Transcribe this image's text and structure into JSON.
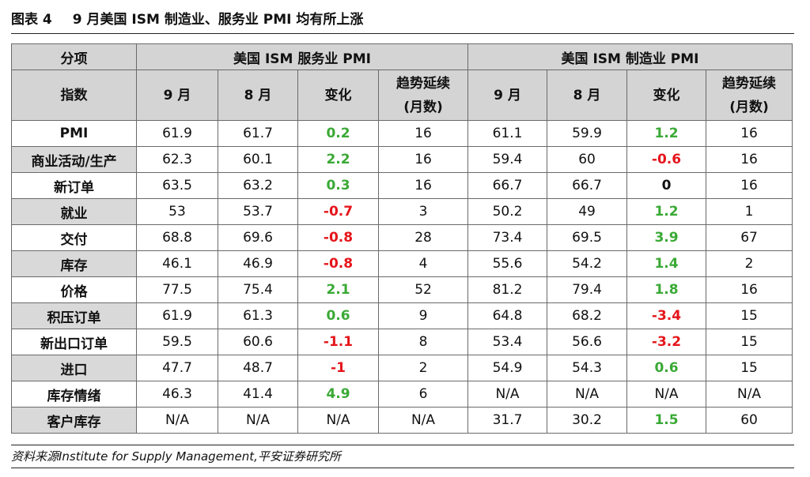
{
  "figure": {
    "label": "图表 4",
    "title": "9 月美国 ISM 制造业、服务业 PMI 均有所上涨"
  },
  "table": {
    "header_top": {
      "category": "分项",
      "services": "美国 ISM 服务业 PMI",
      "manufacturing": "美国 ISM 制造业 PMI"
    },
    "header_sub": {
      "index": "指数",
      "sep": "9 月",
      "aug": "8 月",
      "change": "变化",
      "trend_line1": "趋势延续",
      "trend_line2": "(月数)"
    },
    "rows": [
      {
        "name": "PMI",
        "s": [
          "61.9",
          "61.7",
          "0.2",
          "16"
        ],
        "m": [
          "61.1",
          "59.9",
          "1.2",
          "16"
        ],
        "sc": "pos",
        "mc": "pos"
      },
      {
        "name": "商业活动/生产",
        "s": [
          "62.3",
          "60.1",
          "2.2",
          "16"
        ],
        "m": [
          "59.4",
          "60",
          "-0.6",
          "16"
        ],
        "sc": "pos",
        "mc": "neg"
      },
      {
        "name": "新订单",
        "s": [
          "63.5",
          "63.2",
          "0.3",
          "16"
        ],
        "m": [
          "66.7",
          "66.7",
          "0",
          "16"
        ],
        "sc": "pos",
        "mc": "zero"
      },
      {
        "name": "就业",
        "s": [
          "53",
          "53.7",
          "-0.7",
          "3"
        ],
        "m": [
          "50.2",
          "49",
          "1.2",
          "1"
        ],
        "sc": "neg",
        "mc": "pos"
      },
      {
        "name": "交付",
        "s": [
          "68.8",
          "69.6",
          "-0.8",
          "28"
        ],
        "m": [
          "73.4",
          "69.5",
          "3.9",
          "67"
        ],
        "sc": "neg",
        "mc": "pos"
      },
      {
        "name": "库存",
        "s": [
          "46.1",
          "46.9",
          "-0.8",
          "4"
        ],
        "m": [
          "55.6",
          "54.2",
          "1.4",
          "2"
        ],
        "sc": "neg",
        "mc": "pos"
      },
      {
        "name": "价格",
        "s": [
          "77.5",
          "75.4",
          "2.1",
          "52"
        ],
        "m": [
          "81.2",
          "79.4",
          "1.8",
          "16"
        ],
        "sc": "pos",
        "mc": "pos"
      },
      {
        "name": "积压订单",
        "s": [
          "61.9",
          "61.3",
          "0.6",
          "9"
        ],
        "m": [
          "64.8",
          "68.2",
          "-3.4",
          "15"
        ],
        "sc": "pos",
        "mc": "neg"
      },
      {
        "name": "新出口订单",
        "s": [
          "59.5",
          "60.6",
          "-1.1",
          "8"
        ],
        "m": [
          "53.4",
          "56.6",
          "-3.2",
          "15"
        ],
        "sc": "neg",
        "mc": "neg"
      },
      {
        "name": "进口",
        "s": [
          "47.7",
          "48.7",
          "-1",
          "2"
        ],
        "m": [
          "54.9",
          "54.3",
          "0.6",
          "15"
        ],
        "sc": "neg",
        "mc": "pos"
      },
      {
        "name": "库存情绪",
        "s": [
          "46.3",
          "41.4",
          "4.9",
          "6"
        ],
        "m": [
          "N/A",
          "N/A",
          "N/A",
          "N/A"
        ],
        "sc": "pos",
        "mc": "na"
      },
      {
        "name": "客户库存",
        "s": [
          "N/A",
          "N/A",
          "N/A",
          "N/A"
        ],
        "m": [
          "31.7",
          "30.2",
          "1.5",
          "60"
        ],
        "sc": "na",
        "mc": "pos"
      }
    ]
  },
  "colors": {
    "positive": "#3aa935",
    "negative": "#e5151b",
    "header_bg": "#d4d4d4",
    "alt_row_label_bg": "#d9d9d9"
  },
  "source": "资料来源Institute for Supply Management,平安证券研究所"
}
